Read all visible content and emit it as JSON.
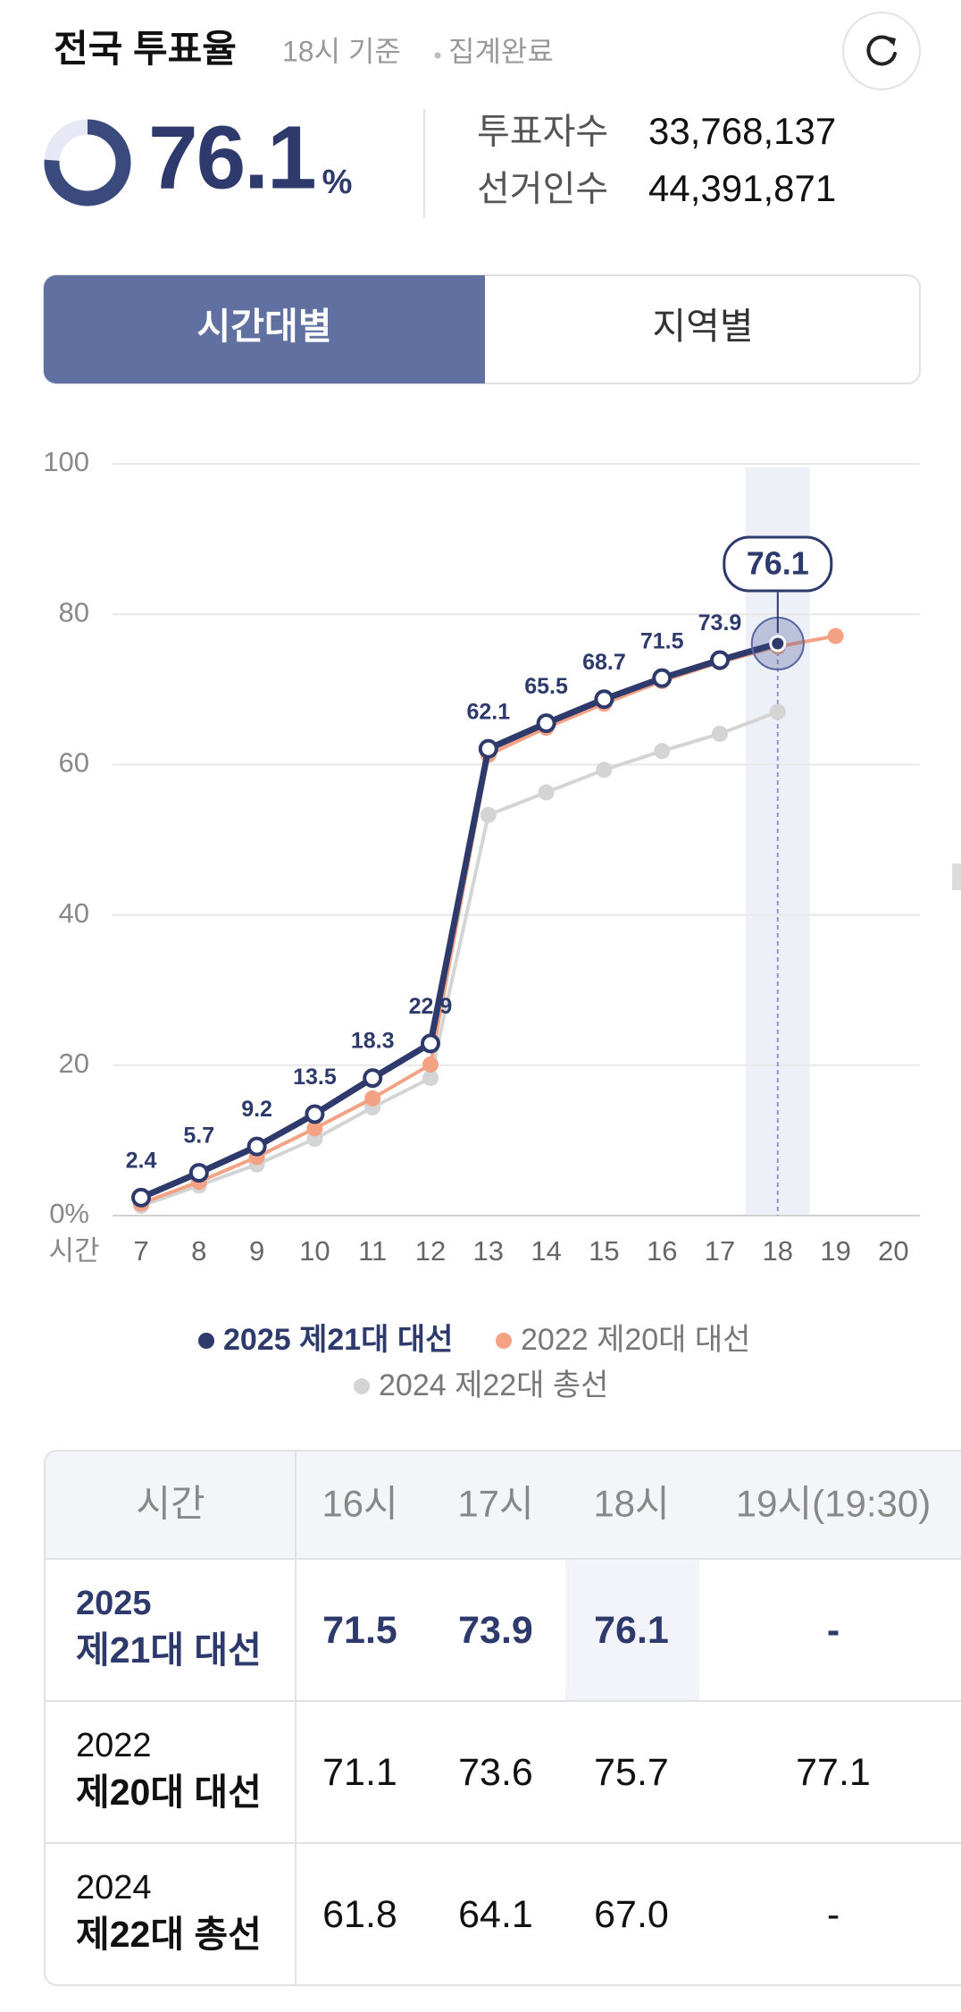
{
  "header": {
    "title": "전국 투표율",
    "basis": "18시 기준",
    "status": "집계완료"
  },
  "summary": {
    "turnout": 76.1,
    "unit": "%",
    "voters_label": "투표자수",
    "voters": "33,768,137",
    "electors_label": "선거인수",
    "electors": "44,391,871"
  },
  "tabs": [
    "시간대별",
    "지역별"
  ],
  "chart_data": {
    "type": "line",
    "x_label": "시간",
    "categories": [
      "7",
      "8",
      "9",
      "10",
      "11",
      "12",
      "13",
      "14",
      "15",
      "16",
      "17",
      "18",
      "19",
      "20"
    ],
    "highlight": "18",
    "ylim": [
      0,
      100
    ],
    "yticks": [
      {
        "value": 0,
        "label": "0%"
      },
      20,
      40,
      60,
      80,
      100
    ],
    "grid": true,
    "series": [
      {
        "name": "2025 제21대 대선",
        "color": "#2d3a6b",
        "values": [
          2.4,
          5.7,
          9.2,
          13.5,
          18.3,
          22.9,
          62.1,
          65.5,
          68.7,
          71.5,
          73.9,
          76.1,
          null,
          null
        ]
      },
      {
        "name": "2022 제20대 대선",
        "color": "#f4a184",
        "values": [
          1.6,
          4.5,
          7.8,
          11.6,
          15.6,
          20.1,
          61.3,
          64.9,
          68.1,
          71.1,
          73.6,
          75.7,
          77.1,
          null
        ]
      },
      {
        "name": "2024 제22대 총선",
        "color": "#d4d4d4",
        "values": [
          1.3,
          4.0,
          6.8,
          10.2,
          14.4,
          18.3,
          53.3,
          56.3,
          59.3,
          61.8,
          64.1,
          67.0,
          null,
          null
        ]
      }
    ]
  },
  "table": {
    "header": [
      "시간",
      "16시",
      "17시",
      "18시",
      "19시(19:30)"
    ],
    "rows": [
      {
        "year": "2025",
        "name": "제21대 대선",
        "cells": [
          "71.5",
          "73.9",
          "76.1",
          "-"
        ]
      },
      {
        "year": "2022",
        "name": "제20대 대선",
        "cells": [
          "71.1",
          "73.6",
          "75.7",
          "77.1"
        ]
      },
      {
        "year": "2024",
        "name": "제22대 총선",
        "cells": [
          "61.8",
          "64.1",
          "67.0",
          "-"
        ]
      }
    ]
  }
}
